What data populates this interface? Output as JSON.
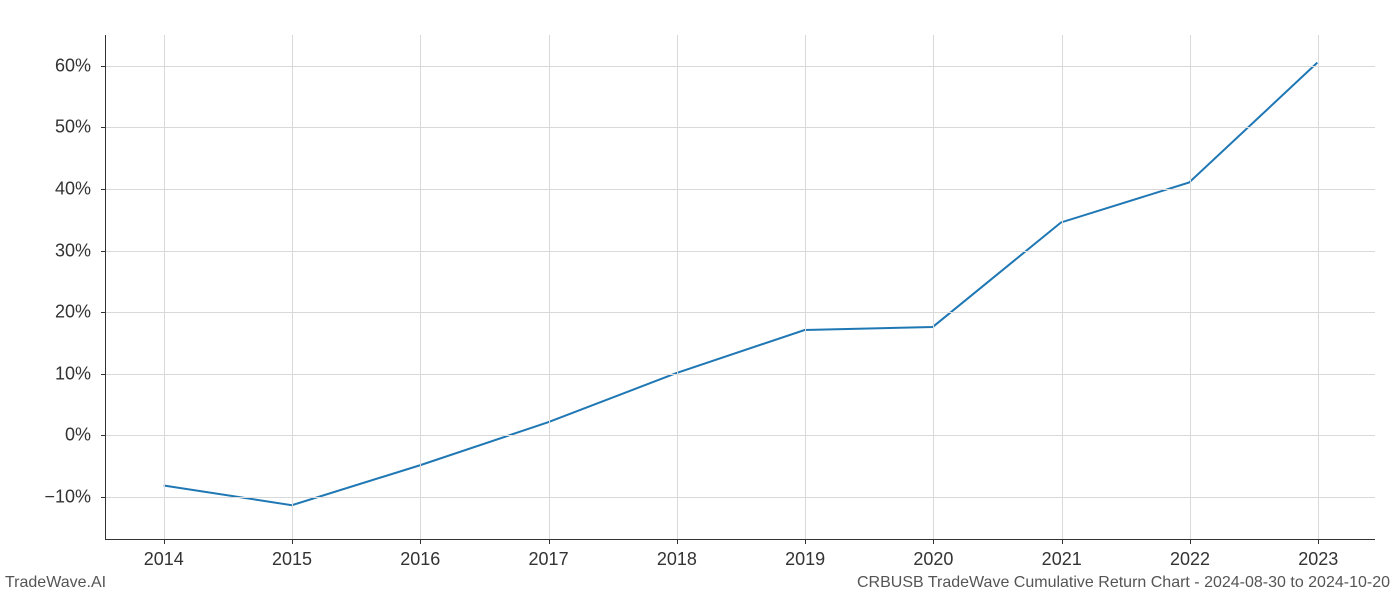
{
  "chart": {
    "type": "line",
    "x_values": [
      2014,
      2015,
      2016,
      2017,
      2018,
      2019,
      2020,
      2021,
      2022,
      2023
    ],
    "y_values": [
      -8.3,
      -11.5,
      -5,
      2,
      10,
      17,
      17.5,
      34.5,
      41,
      60.5
    ],
    "xlim": [
      2013.55,
      2023.45
    ],
    "ylim": [
      -17,
      65
    ],
    "x_ticks": [
      2014,
      2015,
      2016,
      2017,
      2018,
      2019,
      2020,
      2021,
      2022,
      2023
    ],
    "y_ticks": [
      -10,
      0,
      10,
      20,
      30,
      40,
      50,
      60
    ],
    "x_tick_labels": [
      "2014",
      "2015",
      "2016",
      "2017",
      "2018",
      "2019",
      "2020",
      "2021",
      "2022",
      "2023"
    ],
    "y_tick_labels": [
      "−10%",
      "0%",
      "10%",
      "20%",
      "30%",
      "40%",
      "50%",
      "60%"
    ],
    "line_color": "#1f77b4",
    "line_width": 2,
    "grid_color": "#d9d9d9",
    "background_color": "#ffffff",
    "axis_color": "#333333",
    "tick_fontsize": 18,
    "tick_color": "#333333"
  },
  "footer": {
    "left": "TradeWave.AI",
    "right": "CRBUSB TradeWave Cumulative Return Chart - 2024-08-30 to 2024-10-20",
    "fontsize": 16,
    "color": "#555555"
  }
}
